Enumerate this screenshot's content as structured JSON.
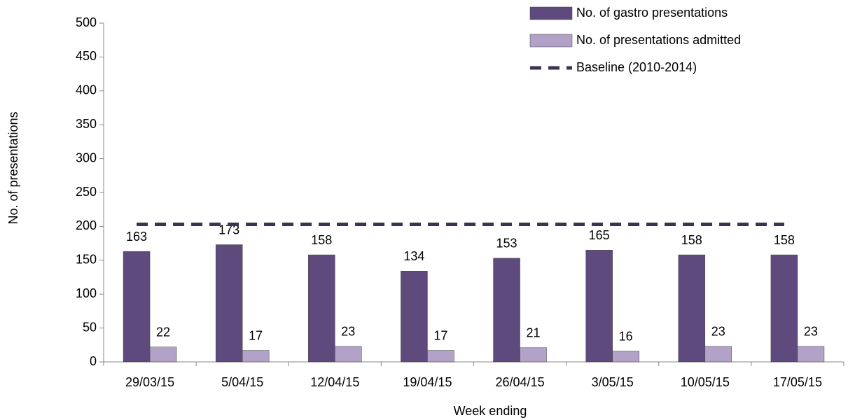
{
  "chart_data": {
    "type": "bar",
    "categories": [
      "29/03/15",
      "5/04/15",
      "12/04/15",
      "19/04/15",
      "26/04/15",
      "3/05/15",
      "10/05/15",
      "17/05/15"
    ],
    "series": [
      {
        "name": "No. of gastro presentations",
        "color": "#5e4a7c",
        "values": [
          163,
          173,
          158,
          134,
          153,
          165,
          158,
          158
        ]
      },
      {
        "name": "No. of presentations admitted",
        "color": "#b3a2c7",
        "values": [
          22,
          17,
          23,
          17,
          21,
          16,
          23,
          23
        ]
      },
      {
        "name": "Baseline (2010-2014)",
        "type": "line",
        "color": "#3f3151",
        "values": [
          203,
          203,
          203,
          203,
          203,
          203,
          203,
          203
        ]
      }
    ],
    "x_label": "Week ending",
    "y_label": "No. of presentations",
    "ylim": [
      0,
      500
    ],
    "yticks": [
      0,
      50,
      100,
      150,
      200,
      250,
      300,
      350,
      400,
      450,
      500
    ],
    "legend": "top-right"
  }
}
